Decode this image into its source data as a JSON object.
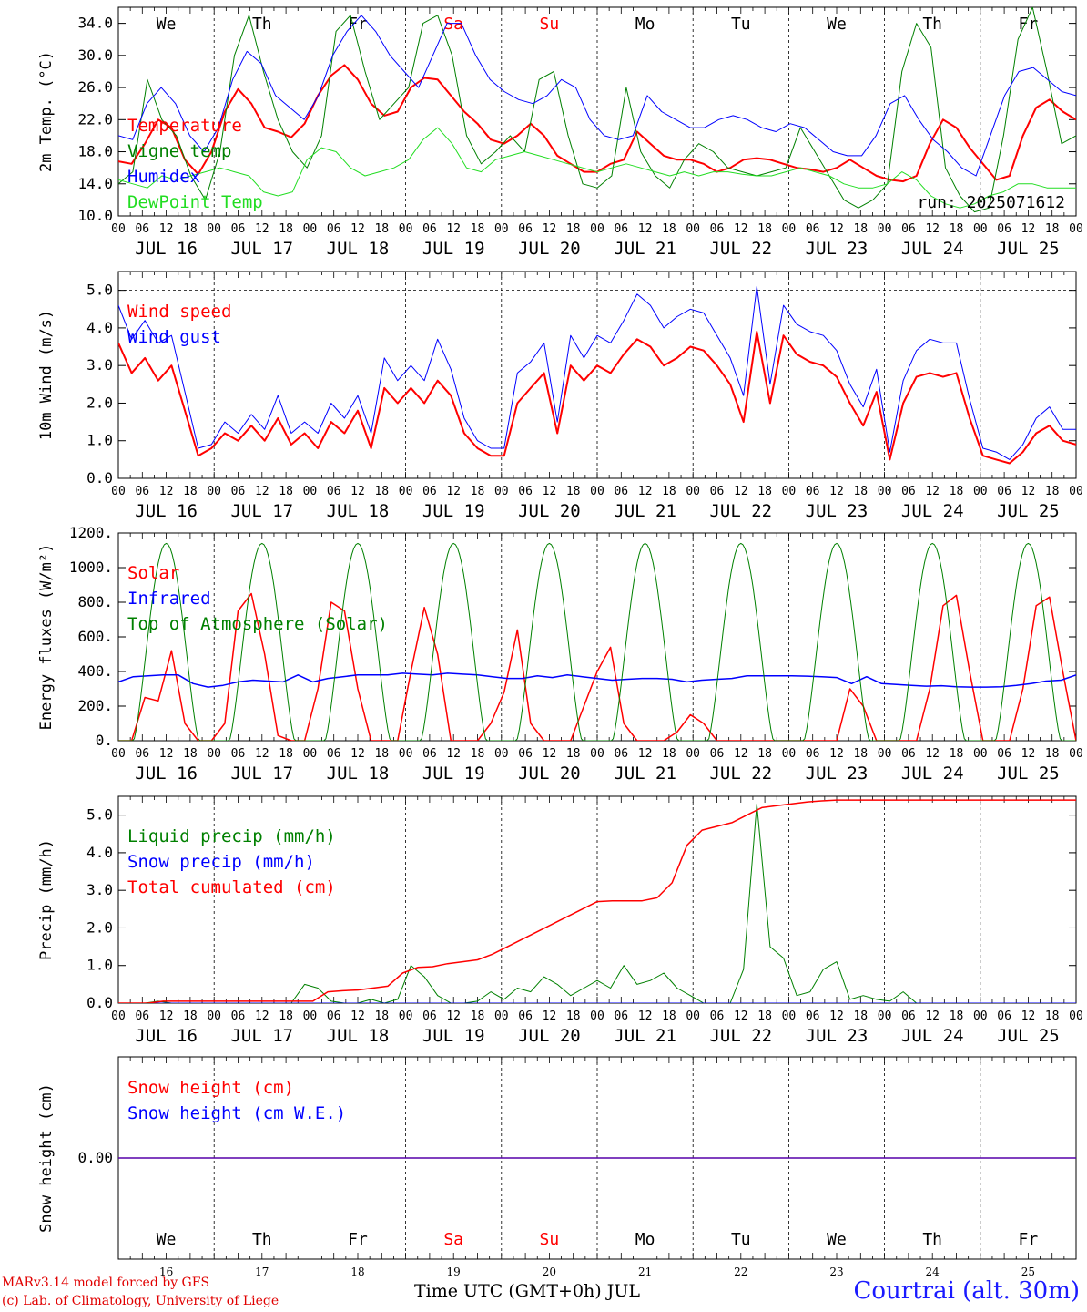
{
  "footer": {
    "model": "MARv3.14 model forced by GFS",
    "copyright": "(c) Lab. of Climatology, University of Liege",
    "xaxis_title": "Time UTC (GMT+0h) JUL",
    "station": "Courtrai (alt. 30m)"
  },
  "colors": {
    "red": "#ff0000",
    "green": "#008000",
    "blue": "#0000ff",
    "lightgreen": "#22dd22"
  },
  "chart_data": {
    "type": "line",
    "days": [
      "JUL 16",
      "JUL 17",
      "JUL 18",
      "JUL 19",
      "JUL 20",
      "JUL 21",
      "JUL 22",
      "JUL 23",
      "JUL 24",
      "JUL 25"
    ],
    "day_numbers": [
      "16",
      "17",
      "18",
      "19",
      "20",
      "21",
      "22",
      "23",
      "24",
      "25"
    ],
    "weekdays": [
      "We",
      "Th",
      "Fr",
      "Sa",
      "Su",
      "Mo",
      "Tu",
      "We",
      "Th",
      "Fr"
    ],
    "weekday_colors": [
      "#000",
      "#000",
      "#000",
      "#ff0000",
      "#ff0000",
      "#000",
      "#000",
      "#000",
      "#000",
      "#000"
    ],
    "hour_ticks": [
      "00",
      "06",
      "12",
      "18"
    ],
    "hour_end": "00",
    "panels": [
      {
        "id": "temp",
        "ylabel": "2m Temp. (°C)",
        "ylim": [
          10,
          36
        ],
        "yticks": [
          10,
          14,
          18,
          22,
          26,
          30,
          34
        ],
        "ytick_labels": [
          "10.0",
          "14.0",
          "18.0",
          "22.0",
          "26.0",
          "30.0",
          "34.0"
        ],
        "annotation": "run: 2025071612",
        "series": [
          {
            "name": "Temperature",
            "color": "#ff0000",
            "width": 2,
            "values": [
              16.8,
              16.5,
              19,
              22,
              21,
              17,
              15.2,
              18,
              23,
              25.8,
              24,
              21,
              20.5,
              19.8,
              21.5,
              25,
              27.5,
              28.8,
              27,
              24,
              22.5,
              23,
              26,
              27.2,
              27,
              25,
              23,
              21.5,
              19.5,
              19,
              20,
              21.5,
              20,
              17.5,
              16.5,
              15.5,
              15.5,
              16.5,
              17,
              20.5,
              19,
              17.5,
              17,
              17,
              16.5,
              15.5,
              16,
              17,
              17.2,
              17,
              16.5,
              16,
              15.8,
              15.5,
              16,
              17,
              16,
              15,
              14.5,
              14.3,
              15,
              19,
              22,
              21,
              18.5,
              16.5,
              14.5,
              15,
              20,
              23.5,
              24.5,
              23,
              22
            ]
          },
          {
            "name": "Vigne temp",
            "color": "#008000",
            "width": 1,
            "values": [
              14,
              15.5,
              27,
              22,
              20,
              15,
              12,
              18,
              30,
              35,
              28,
              22,
              18,
              16,
              20,
              33,
              35,
              28,
              22,
              24,
              26,
              34,
              35,
              30,
              20,
              16.5,
              18,
              20,
              18,
              27,
              28,
              20,
              14,
              13.5,
              15,
              26,
              18,
              15,
              13.5,
              17,
              19,
              18,
              16,
              15.5,
              15,
              15.5,
              16,
              21,
              18,
              15,
              12,
              11,
              12,
              14,
              28,
              34,
              31,
              16,
              12.5,
              10.5,
              11,
              20,
              32,
              36,
              28,
              19,
              20
            ]
          },
          {
            "name": "Humidex",
            "color": "#0000ff",
            "width": 1,
            "values": [
              20,
              19.5,
              24,
              26,
              24,
              20,
              18,
              21,
              27,
              30.5,
              29,
              25,
              23.5,
              22,
              25,
              30,
              33,
              35,
              33,
              30,
              28,
              26,
              30,
              34,
              34,
              30,
              27,
              25.5,
              24.5,
              24,
              25,
              27,
              26,
              22,
              20,
              19.5,
              20,
              25,
              23,
              22,
              21,
              21,
              22,
              22.5,
              22,
              21,
              20.5,
              21.5,
              21,
              19.5,
              18,
              17.5,
              17.5,
              20,
              24,
              25,
              22,
              19.5,
              18,
              16,
              15,
              20,
              25,
              28,
              28.5,
              27,
              25.5,
              25
            ]
          },
          {
            "name": "DewPoint Temp",
            "color": "#22dd22",
            "width": 1,
            "values": [
              14.5,
              14,
              13.5,
              15,
              14.5,
              15,
              15.5,
              16,
              15.5,
              15,
              13,
              12.5,
              13,
              17,
              18.5,
              18,
              16,
              15,
              15.5,
              16,
              17,
              19.5,
              21,
              19,
              16,
              15.5,
              17,
              17.5,
              18,
              17.5,
              17,
              16.5,
              16,
              15.5,
              16,
              16.5,
              16,
              15.5,
              15,
              15.5,
              15,
              15.5,
              15.5,
              15.2,
              15,
              15,
              15.5,
              16,
              15.5,
              15,
              14,
              13.5,
              13.5,
              14,
              15.5,
              14.5,
              12.5,
              11.5,
              11,
              11.5,
              12.5,
              13,
              14,
              14,
              13.5,
              13.5,
              13.5
            ]
          }
        ],
        "legend": [
          "Temperature",
          "Vigne temp",
          "Humidex",
          "DewPoint Temp"
        ]
      },
      {
        "id": "wind",
        "ylabel": "10m Wind (m/s)",
        "ylim": [
          0,
          5.5
        ],
        "yticks": [
          0,
          1,
          2,
          3,
          4,
          5
        ],
        "ytick_labels": [
          "0.0",
          "1.0",
          "2.0",
          "3.0",
          "4.0",
          "5.0"
        ],
        "series": [
          {
            "name": "Wind speed",
            "color": "#ff0000",
            "width": 2,
            "values": [
              3.6,
              2.8,
              3.2,
              2.6,
              3,
              1.8,
              0.6,
              0.8,
              1.2,
              1,
              1.4,
              1,
              1.6,
              0.9,
              1.2,
              0.8,
              1.5,
              1.2,
              1.8,
              0.8,
              2.4,
              2,
              2.4,
              2,
              2.6,
              2.2,
              1.2,
              0.8,
              0.6,
              0.6,
              2,
              2.4,
              2.8,
              1.2,
              3,
              2.6,
              3,
              2.8,
              3.3,
              3.7,
              3.5,
              3,
              3.2,
              3.5,
              3.4,
              3,
              2.5,
              1.5,
              3.9,
              2,
              3.8,
              3.3,
              3.1,
              3,
              2.7,
              2,
              1.4,
              2.3,
              0.5,
              2,
              2.7,
              2.8,
              2.7,
              2.8,
              1.6,
              0.6,
              0.5,
              0.4,
              0.7,
              1.2,
              1.4,
              1,
              0.9
            ]
          },
          {
            "name": "Wind gust",
            "color": "#0000ff",
            "width": 1,
            "values": [
              4.6,
              3.7,
              4.2,
              3.6,
              3.8,
              2.3,
              0.8,
              0.9,
              1.5,
              1.2,
              1.7,
              1.3,
              2.2,
              1.2,
              1.5,
              1.2,
              2,
              1.6,
              2.2,
              1.2,
              3.2,
              2.6,
              3,
              2.6,
              3.7,
              2.9,
              1.6,
              1,
              0.8,
              0.8,
              2.8,
              3.1,
              3.6,
              1.5,
              3.8,
              3.2,
              3.8,
              3.6,
              4.2,
              4.9,
              4.6,
              4,
              4.3,
              4.5,
              4.4,
              3.8,
              3.2,
              2.2,
              5.1,
              2.5,
              4.6,
              4.1,
              3.9,
              3.8,
              3.4,
              2.5,
              1.9,
              2.9,
              0.7,
              2.6,
              3.4,
              3.7,
              3.6,
              3.6,
              2.1,
              0.8,
              0.7,
              0.5,
              0.9,
              1.6,
              1.9,
              1.3,
              1.3
            ]
          }
        ],
        "legend": [
          "Wind speed",
          "Wind gust"
        ]
      },
      {
        "id": "energy",
        "ylabel": "Energy fluxes (W/m²)",
        "ylim": [
          0,
          1200
        ],
        "yticks": [
          0,
          200,
          400,
          600,
          800,
          1000,
          1200
        ],
        "ytick_labels": [
          "0.",
          "200.",
          "400.",
          "600.",
          "800.",
          "1000.",
          "1200."
        ],
        "series": [
          {
            "name": "Solar",
            "color": "#ff0000",
            "width": 1.5,
            "values": [
              0,
              0,
              250,
              230,
              520,
              100,
              0,
              0,
              100,
              750,
              850,
              500,
              30,
              0,
              0,
              300,
              800,
              750,
              300,
              0,
              0,
              0,
              400,
              770,
              500,
              0,
              0,
              0,
              100,
              280,
              640,
              100,
              0,
              0,
              0,
              200,
              400,
              540,
              100,
              0,
              0,
              0,
              50,
              150,
              100,
              0,
              0,
              0,
              0,
              0,
              0,
              0,
              0,
              0,
              0,
              300,
              200,
              0,
              0,
              0,
              0,
              300,
              780,
              840,
              400,
              0,
              0,
              0,
              300,
              780,
              830,
              400,
              0
            ]
          },
          {
            "name": "Infrared",
            "color": "#0000ff",
            "width": 1.5,
            "values": [
              340,
              370,
              375,
              380,
              380,
              330,
              310,
              320,
              340,
              350,
              345,
              340,
              380,
              340,
              360,
              370,
              380,
              380,
              380,
              390,
              385,
              380,
              390,
              385,
              380,
              370,
              360,
              360,
              375,
              365,
              380,
              370,
              360,
              350,
              355,
              360,
              360,
              355,
              340,
              350,
              355,
              360,
              375,
              375,
              375,
              375,
              373,
              370,
              365,
              330,
              370,
              330,
              325,
              320,
              315,
              318,
              312,
              310,
              310,
              312,
              320,
              330,
              345,
              350,
              380
            ]
          },
          {
            "name": "Top of Atmosphere (Solar)",
            "color": "#008000",
            "width": 1,
            "diurnal": true,
            "peak": 1140
          }
        ],
        "legend": [
          "Solar",
          "Infrared",
          "Top of Atmosphere (Solar)"
        ]
      },
      {
        "id": "precip",
        "ylabel": "Precip (mm/h)",
        "ylim": [
          0,
          5.5
        ],
        "yticks": [
          0,
          1,
          2,
          3,
          4,
          5
        ],
        "ytick_labels": [
          "0.0",
          "1.0",
          "2.0",
          "3.0",
          "4.0",
          "5.0"
        ],
        "series": [
          {
            "name": "Liquid precip (mm/h)",
            "color": "#008000",
            "width": 1,
            "values": [
              0,
              0,
              0,
              0.05,
              0,
              0,
              0,
              0,
              0,
              0,
              0,
              0,
              0,
              0,
              0.5,
              0.4,
              0.05,
              0,
              0,
              0.1,
              0,
              0.1,
              1,
              0.7,
              0.2,
              0,
              0,
              0.05,
              0.3,
              0.1,
              0.4,
              0.3,
              0.7,
              0.5,
              0.2,
              0.4,
              0.6,
              0.4,
              1,
              0.5,
              0.6,
              0.8,
              0.4,
              0.2,
              0,
              0,
              0,
              0.9,
              5.3,
              1.5,
              1.2,
              0.2,
              0.3,
              0.9,
              1.1,
              0.1,
              0.2,
              0.1,
              0.05,
              0.3,
              0,
              0,
              0,
              0,
              0,
              0,
              0,
              0,
              0,
              0,
              0,
              0,
              0
            ]
          },
          {
            "name": "Snow precip (mm/h)",
            "color": "#0000ff",
            "width": 1,
            "values": [
              0,
              0
            ]
          },
          {
            "name": "Total cumulated (cm)",
            "color": "#ff0000",
            "width": 1.5,
            "values": [
              0,
              0,
              0,
              0.05,
              0.05,
              0.05,
              0.05,
              0.05,
              0.05,
              0.05,
              0.05,
              0.05,
              0.05,
              0.05,
              0.3,
              0.33,
              0.35,
              0.4,
              0.45,
              0.8,
              0.95,
              0.97,
              1.05,
              1.1,
              1.15,
              1.3,
              1.5,
              1.7,
              1.9,
              2.1,
              2.3,
              2.5,
              2.7,
              2.72,
              2.72,
              2.72,
              2.8,
              3.2,
              4.2,
              4.6,
              4.7,
              4.8,
              5.0,
              5.2,
              5.25,
              5.3,
              5.35,
              5.38,
              5.4,
              5.4,
              5.4,
              5.4,
              5.4,
              5.4,
              5.4,
              5.4,
              5.4,
              5.4,
              5.4,
              5.4,
              5.4,
              5.4,
              5.4,
              5.4,
              5.4
            ]
          }
        ],
        "legend": [
          "Liquid precip (mm/h)",
          "Snow precip (mm/h)",
          "Total cumulated (cm)"
        ]
      },
      {
        "id": "snow",
        "ylabel": "Snow height (cm)",
        "ylim": [
          -1,
          1
        ],
        "yticks": [
          0
        ],
        "ytick_labels": [
          "0.00"
        ],
        "series": [
          {
            "name": "Snow height (cm)",
            "color": "#ff0000",
            "width": 1.5,
            "values": [
              0,
              0
            ]
          },
          {
            "name": "Snow height (cm W.E.)",
            "color": "#0000ff",
            "width": 1,
            "values": [
              0,
              0
            ]
          }
        ],
        "legend": [
          "Snow height (cm)",
          "Snow height (cm W.E.)"
        ]
      }
    ]
  }
}
